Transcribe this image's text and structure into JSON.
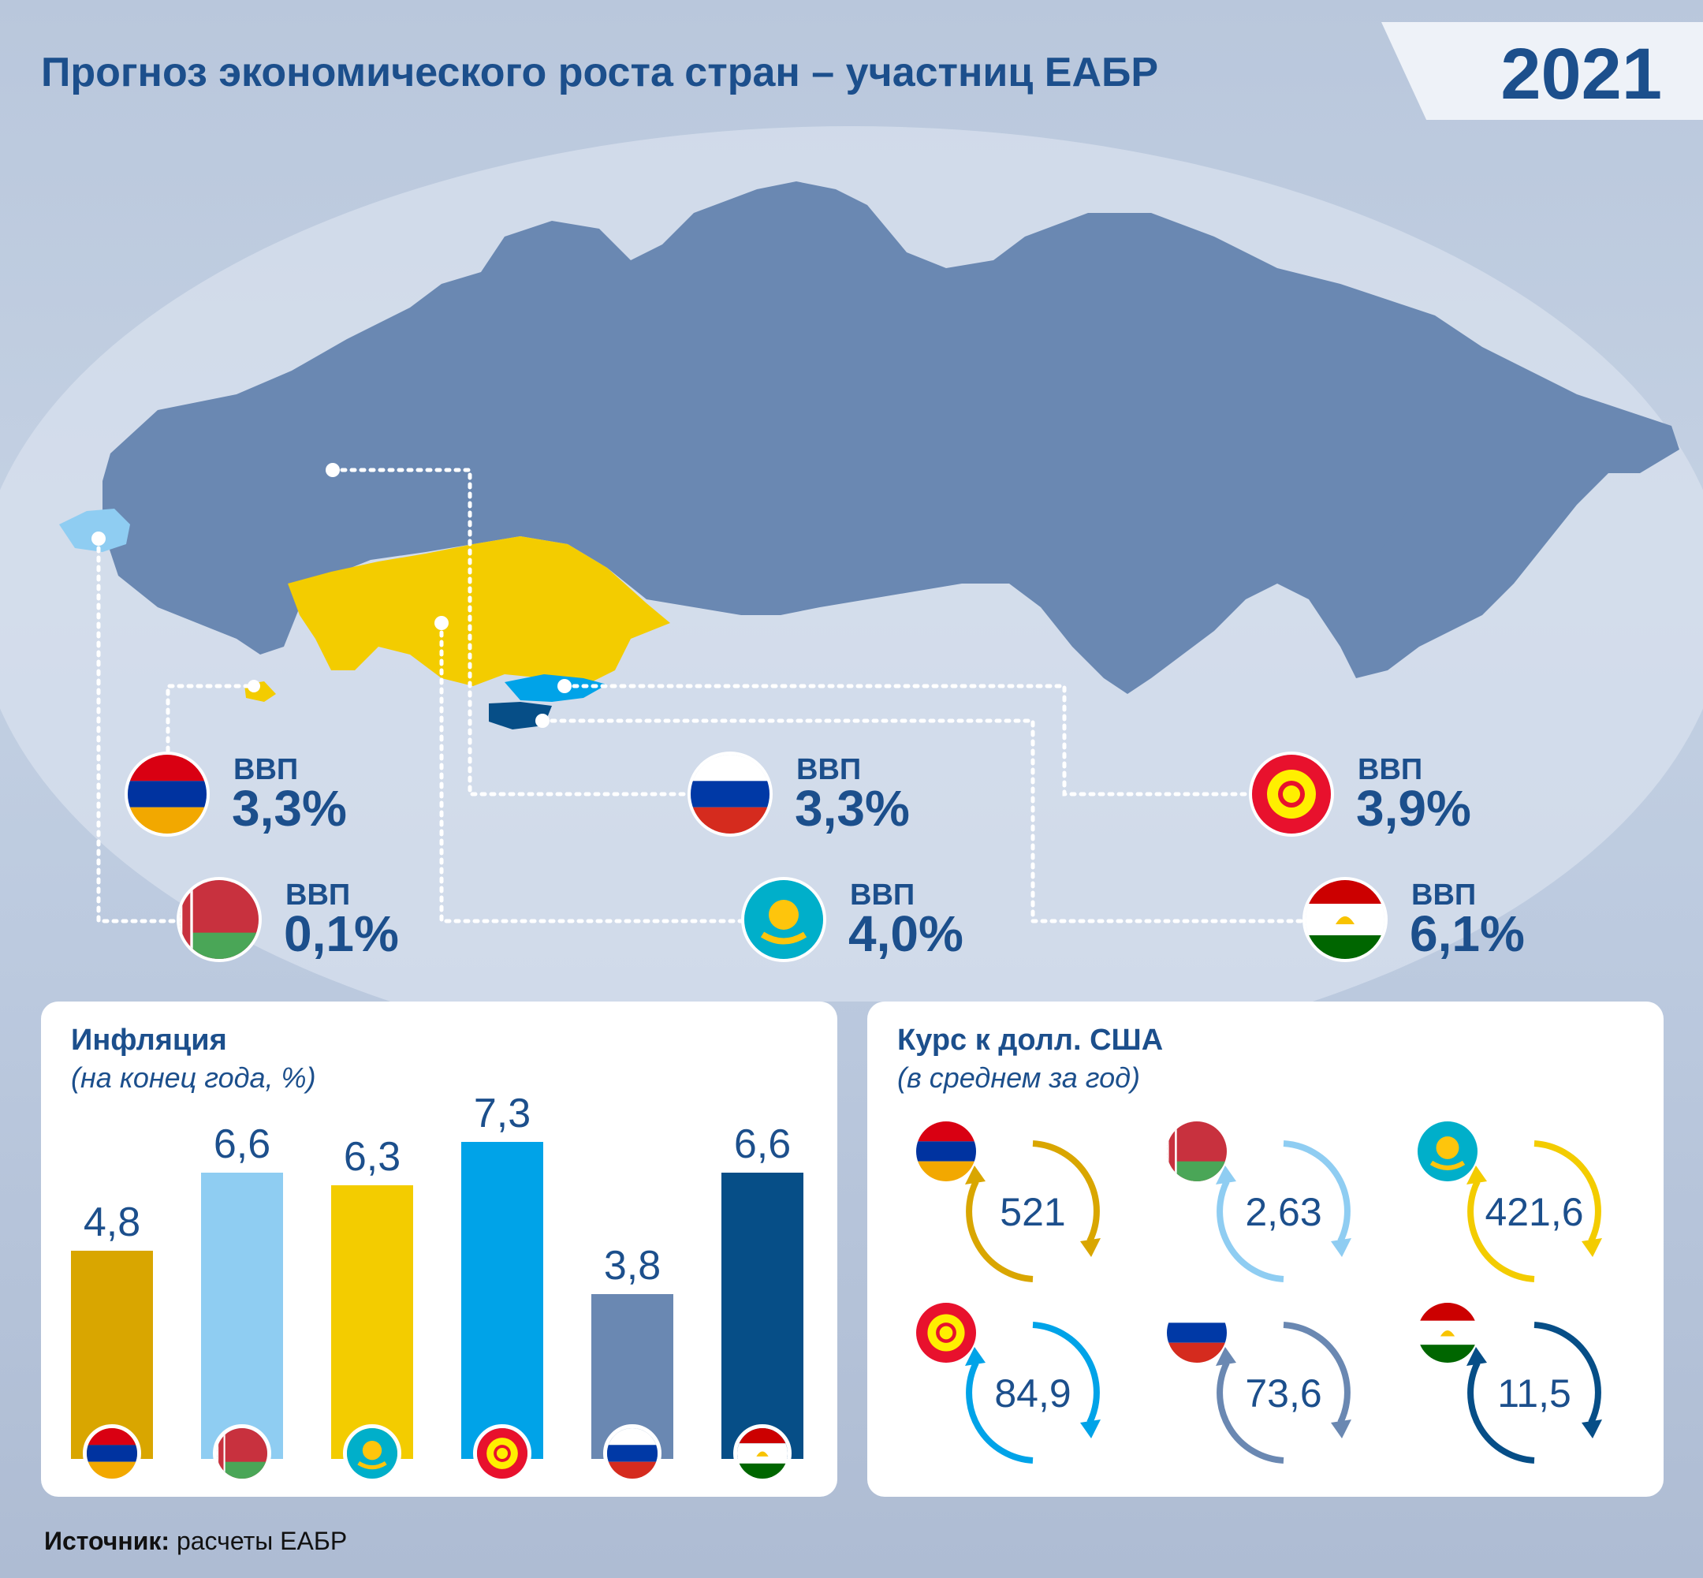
{
  "title": "Прогноз экономического роста стран – участниц ЕАБР",
  "year": "2021",
  "colors": {
    "armenia": "#d9a600",
    "belarus": "#8fcdf2",
    "kazakhstan": "#f3cc00",
    "kyrgyzstan": "#00a3e8",
    "russia": "#6a88b2",
    "tajikistan": "#064e87",
    "text": "#1c4f8c"
  },
  "gdp": [
    {
      "country_flag": "armenia-flag-icon",
      "label": "ВВП",
      "value": "3,3%"
    },
    {
      "country_flag": "belarus-flag-icon",
      "label": "ВВП",
      "value": "0,1%"
    },
    {
      "country_flag": "russia-flag-icon",
      "label": "ВВП",
      "value": "3,3%"
    },
    {
      "country_flag": "kazakhstan-flag-icon",
      "label": "ВВП",
      "value": "4,0%"
    },
    {
      "country_flag": "kyrgyzstan-flag-icon",
      "label": "ВВП",
      "value": "3,9%"
    },
    {
      "country_flag": "tajikistan-flag-icon",
      "label": "ВВП",
      "value": "6,1%"
    }
  ],
  "chart_data": [
    {
      "type": "bar",
      "title": "Инфляция",
      "subtitle": "(на конец года, %)",
      "categories": [
        "armenia-flag-icon",
        "belarus-flag-icon",
        "kazakhstan-flag-icon",
        "kyrgyzstan-flag-icon",
        "russia-flag-icon",
        "tajikistan-flag-icon"
      ],
      "values": [
        4.8,
        6.6,
        6.3,
        7.3,
        3.8,
        6.6
      ],
      "value_labels": [
        "4,8",
        "6,6",
        "6,3",
        "7,3",
        "3,8",
        "6,6"
      ],
      "ylim": [
        0,
        7.3
      ],
      "colors": [
        "#d9a600",
        "#8fcdf2",
        "#f3cc00",
        "#00a3e8",
        "#6a88b2",
        "#064e87"
      ],
      "grid": false
    },
    {
      "type": "table",
      "title": "Курс к долл. США",
      "subtitle": "(в среднем за год)",
      "rows": [
        {
          "flag": "armenia-flag-icon",
          "value": "521",
          "color": "#d9a600"
        },
        {
          "flag": "belarus-flag-icon",
          "value": "2,63",
          "color": "#8fcdf2"
        },
        {
          "flag": "kazakhstan-flag-icon",
          "value": "421,6",
          "color": "#f3cc00"
        },
        {
          "flag": "kyrgyzstan-flag-icon",
          "value": "84,9",
          "color": "#00a3e8"
        },
        {
          "flag": "russia-flag-icon",
          "value": "73,6",
          "color": "#6a88b2"
        },
        {
          "flag": "tajikistan-flag-icon",
          "value": "11,5",
          "color": "#064e87"
        }
      ]
    }
  ],
  "source": {
    "label": "Источник:",
    "text": "расчеты ЕАБР"
  }
}
